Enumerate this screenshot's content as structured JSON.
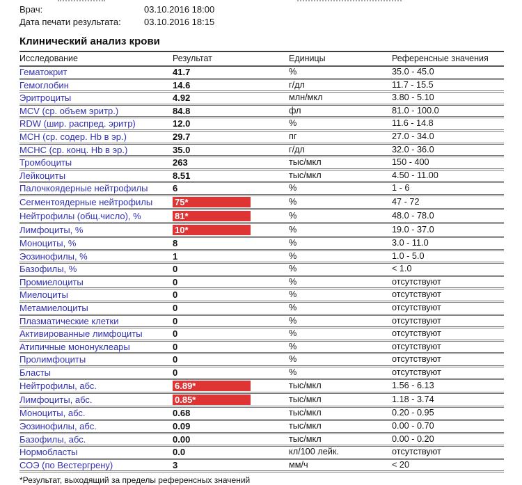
{
  "header": {
    "doctor_label": "Врач:",
    "doctor_value": "03.10.2016 18:00",
    "print_date_label": "Дата печати результата:",
    "print_date_value": "03.10.2016 18:15"
  },
  "section_title": "Клинический анализ крови",
  "table": {
    "columns": [
      "Исследование",
      "Результат",
      "Единицы",
      "Референсные значения"
    ],
    "rows": [
      {
        "name": "Гематокрит",
        "result": "41.7",
        "flagged": false,
        "units": "%",
        "reference": "35.0 - 45.0"
      },
      {
        "name": "Гемоглобин",
        "result": "14.6",
        "flagged": false,
        "units": "г/дл",
        "reference": "11.7 - 15.5"
      },
      {
        "name": "Эритроциты",
        "result": "4.92",
        "flagged": false,
        "units": "млн/мкл",
        "reference": "3.80 - 5.10"
      },
      {
        "name": "MCV (ср. объем эритр.)",
        "result": "84.8",
        "flagged": false,
        "units": "фл",
        "reference": "81.0 - 100.0"
      },
      {
        "name": "RDW (шир. распред. эритр)",
        "result": "12.0",
        "flagged": false,
        "units": "%",
        "reference": "11.6 - 14.8"
      },
      {
        "name": "MCH (ср. содер. Hb в эр.)",
        "result": "29.7",
        "flagged": false,
        "units": "пг",
        "reference": "27.0 - 34.0"
      },
      {
        "name": "MCHC (ср. конц. Hb в эр.)",
        "result": "35.0",
        "flagged": false,
        "units": "г/дл",
        "reference": "32.0 - 36.0"
      },
      {
        "name": "Тромбоциты",
        "result": "263",
        "flagged": false,
        "units": "тыс/мкл",
        "reference": "150 - 400"
      },
      {
        "name": "Лейкоциты",
        "result": "8.51",
        "flagged": false,
        "units": "тыс/мкл",
        "reference": "4.50 - 11.00"
      },
      {
        "name": "Палочкоядерные нейтрофилы",
        "result": "6",
        "flagged": false,
        "units": "%",
        "reference": "1 - 6"
      },
      {
        "name": "Сегментоядерные нейтрофилы",
        "result": "75*",
        "flagged": true,
        "units": "%",
        "reference": "47 - 72"
      },
      {
        "name": "Нейтрофилы (общ.число), %",
        "result": "81*",
        "flagged": true,
        "units": "%",
        "reference": "48.0 - 78.0"
      },
      {
        "name": "Лимфоциты, %",
        "result": "10*",
        "flagged": true,
        "units": "%",
        "reference": "19.0 - 37.0"
      },
      {
        "name": "Моноциты, %",
        "result": "8",
        "flagged": false,
        "units": "%",
        "reference": "3.0 - 11.0"
      },
      {
        "name": "Эозинофилы, %",
        "result": "1",
        "flagged": false,
        "units": "%",
        "reference": "1.0 - 5.0"
      },
      {
        "name": "Базофилы, %",
        "result": "0",
        "flagged": false,
        "units": "%",
        "reference": "< 1.0"
      },
      {
        "name": "Промиелоциты",
        "result": "0",
        "flagged": false,
        "units": "%",
        "reference": "отсутствуют"
      },
      {
        "name": "Миелоциты",
        "result": "0",
        "flagged": false,
        "units": "%",
        "reference": "отсутствуют"
      },
      {
        "name": "Метамиелоциты",
        "result": "0",
        "flagged": false,
        "units": "%",
        "reference": "отсутствуют"
      },
      {
        "name": "Плазматические клетки",
        "result": "0",
        "flagged": false,
        "units": "%",
        "reference": "отсутствуют"
      },
      {
        "name": "Активированные лимфоциты",
        "result": "0",
        "flagged": false,
        "units": "%",
        "reference": "отсутствуют"
      },
      {
        "name": "Атипичные мононуклеары",
        "result": "0",
        "flagged": false,
        "units": "%",
        "reference": "отсутствуют"
      },
      {
        "name": "Пролимфоциты",
        "result": "0",
        "flagged": false,
        "units": "%",
        "reference": "отсутствуют"
      },
      {
        "name": "Бласты",
        "result": "0",
        "flagged": false,
        "units": "%",
        "reference": "отсутствуют"
      },
      {
        "name": "Нейтрофилы, абс.",
        "result": "6.89*",
        "flagged": true,
        "units": "тыс/мкл",
        "reference": "1.56 - 6.13"
      },
      {
        "name": "Лимфоциты, абс.",
        "result": "0.85*",
        "flagged": true,
        "units": "тыс/мкл",
        "reference": "1.18 - 3.74"
      },
      {
        "name": "Моноциты, абс.",
        "result": "0.68",
        "flagged": false,
        "units": "тыс/мкл",
        "reference": "0.20 - 0.95"
      },
      {
        "name": "Эозинофилы, абс.",
        "result": "0.09",
        "flagged": false,
        "units": "тыс/мкл",
        "reference": "0.00 - 0.70"
      },
      {
        "name": "Базофилы, абс.",
        "result": "0.00",
        "flagged": false,
        "units": "тыс/мкл",
        "reference": "0.00 - 0.20"
      },
      {
        "name": "Нормобласты",
        "result": "0.0",
        "flagged": false,
        "units": "кл/100 лейк.",
        "reference": "отсутствуют"
      },
      {
        "name": "СОЭ (по Вестергрену)",
        "result": "3",
        "flagged": false,
        "units": "мм/ч",
        "reference": "< 20"
      }
    ]
  },
  "footnote": "*Результат, выходящий за пределы референсных значений",
  "colors": {
    "test_name_blue": "#3131b3",
    "flag_red": "#de3434",
    "flag_text": "#ffffff",
    "separator_gray": "#787878",
    "text_black": "#151515"
  }
}
